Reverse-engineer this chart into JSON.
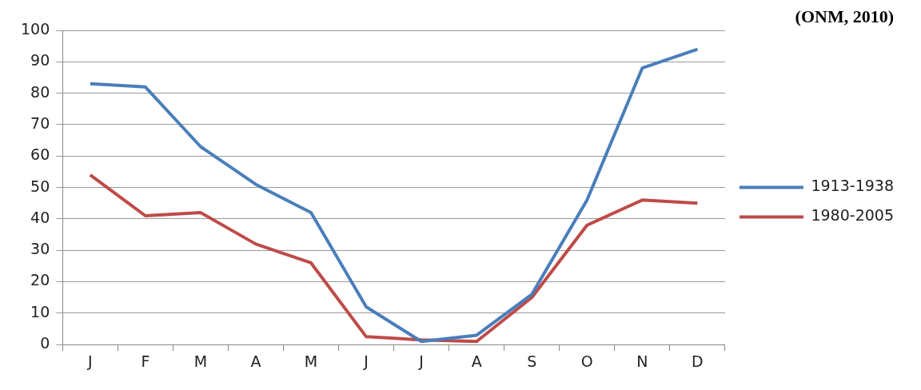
{
  "chart_data": {
    "type": "line",
    "annotations": [
      "(ONM, 2010)"
    ],
    "categories": [
      "J",
      "F",
      "M",
      "A",
      "M",
      "J",
      "J",
      "A",
      "S",
      "O",
      "N",
      "D"
    ],
    "series": [
      {
        "name": "1913-1938",
        "color": "#4a7ebb",
        "values": [
          83,
          82,
          63,
          51,
          42,
          12,
          1,
          3,
          16,
          46,
          88,
          94
        ]
      },
      {
        "name": "1980-2005",
        "color": "#be4b48",
        "values": [
          54,
          41,
          42,
          32,
          26,
          2.5,
          1.5,
          1,
          15,
          38,
          46,
          45
        ]
      }
    ],
    "ylim": [
      0,
      100
    ],
    "yticks": [
      0,
      10,
      20,
      30,
      40,
      50,
      60,
      70,
      80,
      90,
      100
    ],
    "grid": "y",
    "legend": "right",
    "marker": "none",
    "line_style": "solid"
  }
}
